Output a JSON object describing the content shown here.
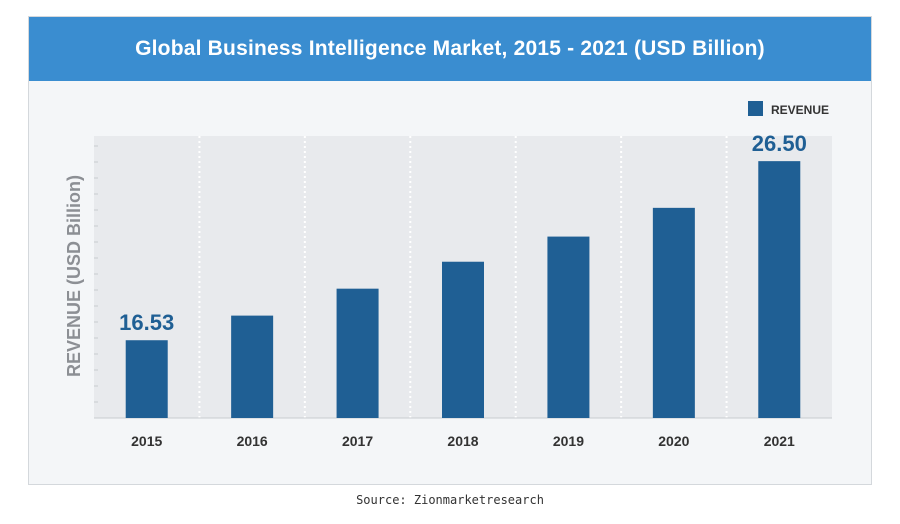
{
  "chart_data": {
    "type": "bar",
    "title": "Global Business Intelligence Market, 2015 - 2021 (USD Billion)",
    "ylabel": "REVENUE (USD Billion)",
    "xlabel": "",
    "legend": {
      "label": "REVENUE",
      "placement": "top-right"
    },
    "categories": [
      "2015",
      "2016",
      "2017",
      "2018",
      "2019",
      "2020",
      "2021"
    ],
    "series": [
      {
        "name": "REVENUE",
        "values": [
          16.53,
          17.9,
          19.4,
          20.9,
          22.3,
          23.9,
          26.5
        ]
      }
    ],
    "data_labels": [
      "16.53",
      "",
      "",
      "",
      "",
      "",
      "26.50"
    ],
    "ylim": [
      12.2,
      27.9
    ],
    "grid": {
      "vertical_dashed": true
    },
    "colors": {
      "bar": "#1f5f94",
      "title_bar": "#3a8dd0",
      "plot_bg": "#e8eaed",
      "label": "#1f5f94"
    }
  },
  "source": "Source: Zionmarketresearch"
}
